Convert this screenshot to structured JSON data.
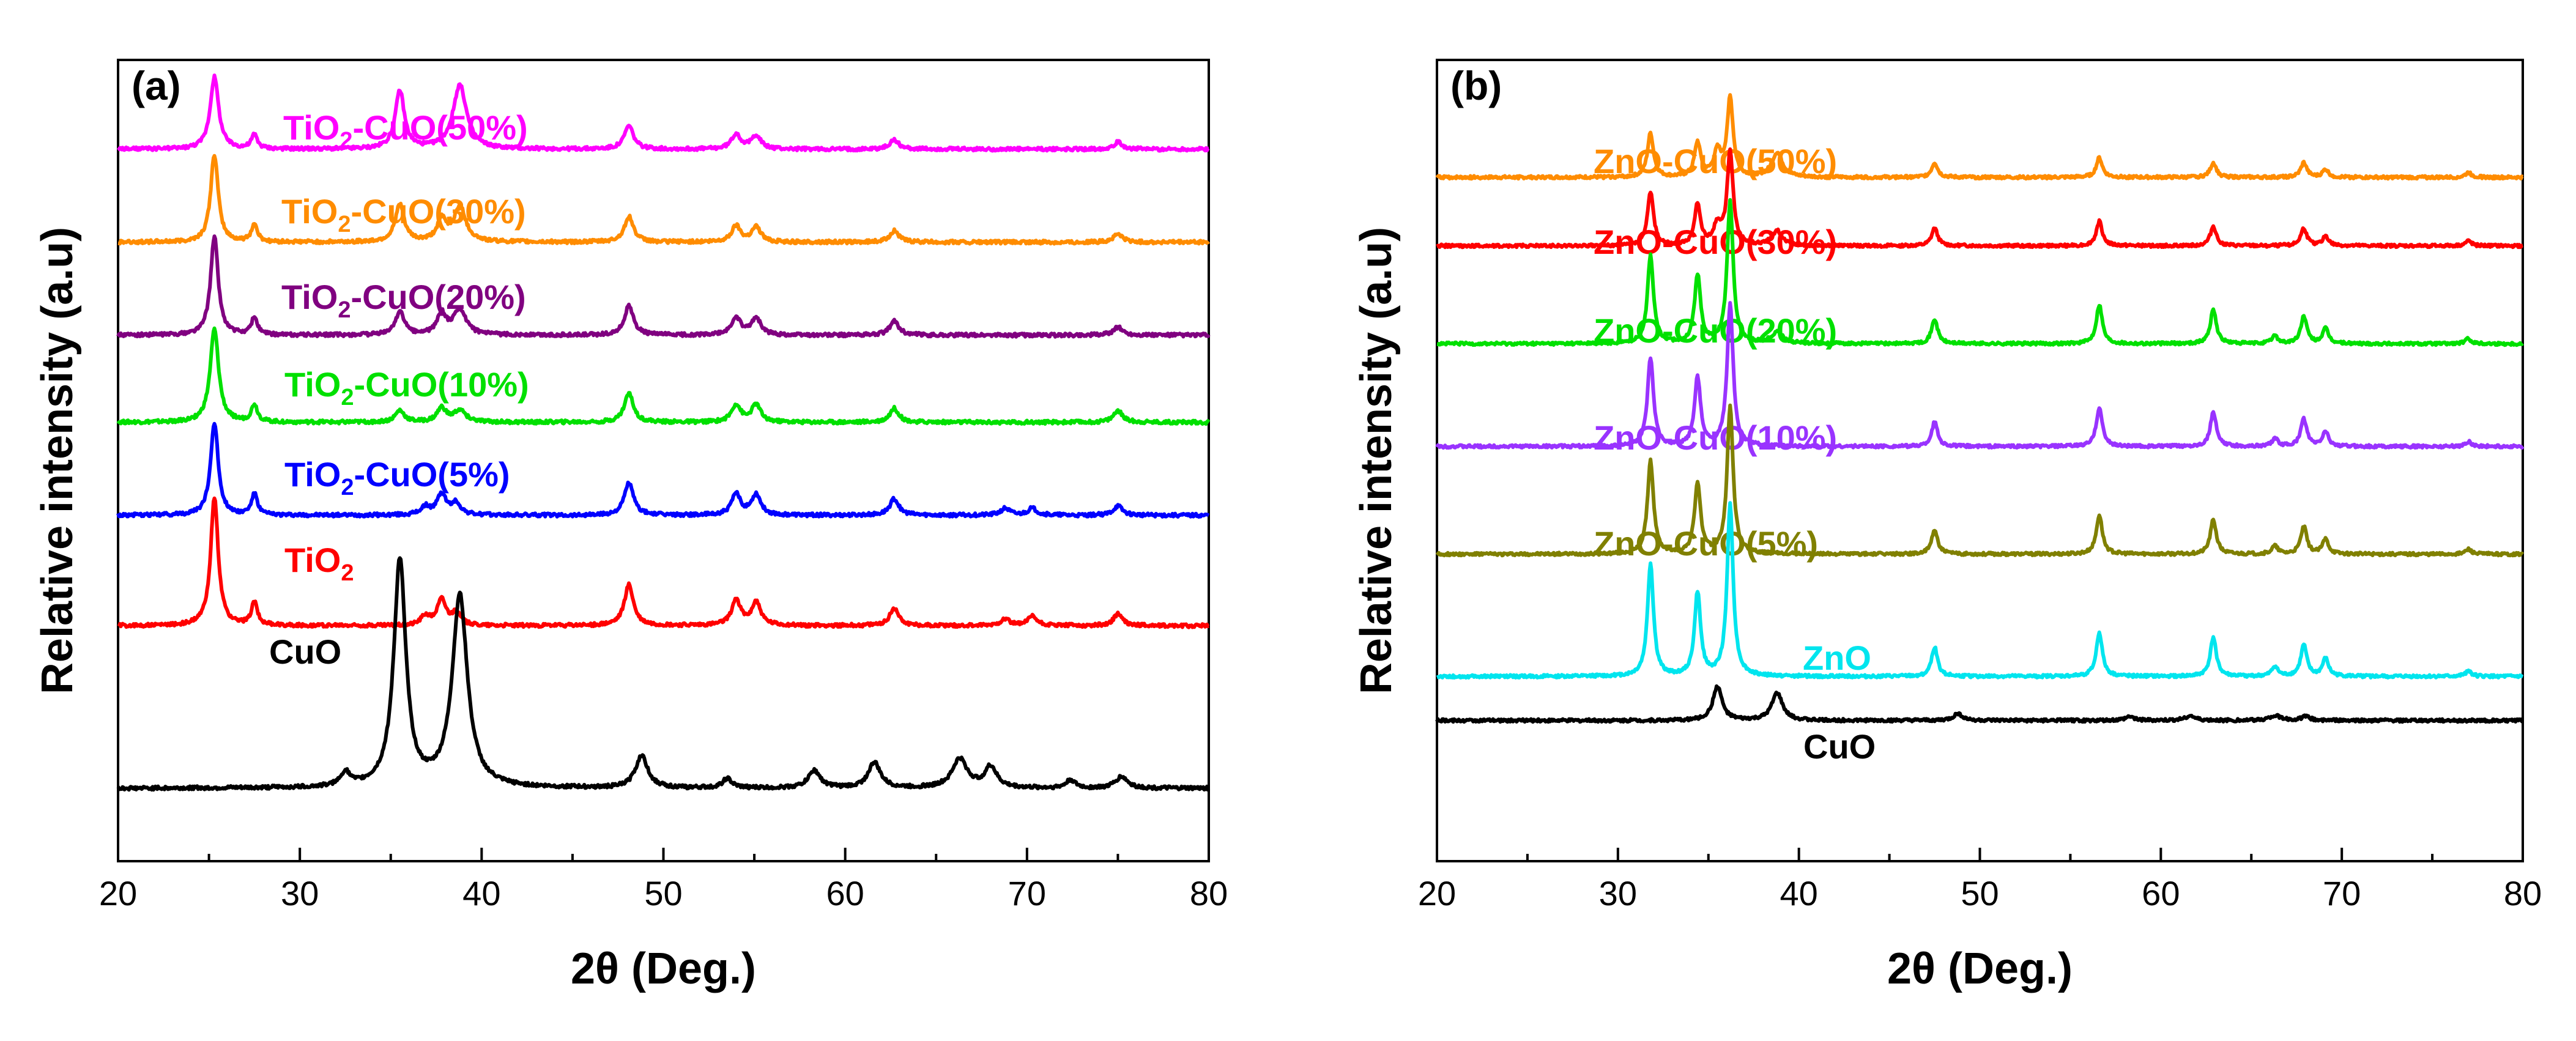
{
  "chart_data": [
    {
      "type": "line",
      "panel_label": "(a)",
      "xlabel": "2θ (Deg.)",
      "ylabel": "Relative intensity (a.u)",
      "xlim": [
        20,
        80
      ],
      "x_ticks": [
        "20",
        "30",
        "40",
        "50",
        "60",
        "70",
        "80"
      ],
      "y_ticks_labeled": false,
      "series": [
        {
          "name": "TiO2-CuO(50%)",
          "label": "TiO",
          "sub": "2",
          "rest": "-CuO(50%)",
          "color": "#ff00ff",
          "baseline": 6.1,
          "peaks": [
            [
              25.3,
              0.62,
              0.28
            ],
            [
              27.5,
              0.12,
              0.2
            ],
            [
              35.5,
              0.5,
              0.3
            ],
            [
              38.8,
              0.55,
              0.45
            ],
            [
              48.1,
              0.2,
              0.3
            ],
            [
              54.0,
              0.13,
              0.3
            ],
            [
              55.1,
              0.12,
              0.3
            ],
            [
              62.7,
              0.08,
              0.3
            ],
            [
              75.0,
              0.06,
              0.3
            ]
          ]
        },
        {
          "name": "TiO2-CuO(30%)",
          "label": "TiO",
          "sub": "2",
          "rest": "-CuO(30%)",
          "color": "#ff8c00",
          "baseline": 5.3,
          "peaks": [
            [
              25.3,
              0.75,
              0.25
            ],
            [
              27.5,
              0.15,
              0.2
            ],
            [
              35.5,
              0.32,
              0.3
            ],
            [
              37.8,
              0.18,
              0.3
            ],
            [
              38.8,
              0.3,
              0.4
            ],
            [
              48.1,
              0.22,
              0.3
            ],
            [
              54.0,
              0.14,
              0.3
            ],
            [
              55.1,
              0.13,
              0.3
            ],
            [
              62.7,
              0.1,
              0.3
            ],
            [
              75.0,
              0.07,
              0.3
            ]
          ]
        },
        {
          "name": "TiO2-CuO(20%)",
          "label": "TiO",
          "sub": "2",
          "rest": "-CuO(20%)",
          "color": "#800080",
          "baseline": 4.5,
          "peaks": [
            [
              25.3,
              0.85,
              0.25
            ],
            [
              27.5,
              0.15,
              0.2
            ],
            [
              35.5,
              0.2,
              0.3
            ],
            [
              37.8,
              0.18,
              0.3
            ],
            [
              38.8,
              0.22,
              0.4
            ],
            [
              48.1,
              0.25,
              0.3
            ],
            [
              54.0,
              0.15,
              0.3
            ],
            [
              55.1,
              0.15,
              0.3
            ],
            [
              62.7,
              0.12,
              0.3
            ],
            [
              75.0,
              0.07,
              0.3
            ]
          ]
        },
        {
          "name": "TiO2-CuO(10%)",
          "label": "TiO",
          "sub": "2",
          "rest": "-CuO(10%)",
          "color": "#00e000",
          "baseline": 3.75,
          "peaks": [
            [
              25.3,
              0.8,
              0.28
            ],
            [
              27.5,
              0.15,
              0.2
            ],
            [
              35.5,
              0.1,
              0.3
            ],
            [
              37.8,
              0.12,
              0.3
            ],
            [
              38.8,
              0.1,
              0.4
            ],
            [
              48.1,
              0.25,
              0.3
            ],
            [
              54.0,
              0.15,
              0.3
            ],
            [
              55.1,
              0.15,
              0.3
            ],
            [
              62.7,
              0.12,
              0.3
            ],
            [
              75.0,
              0.1,
              0.3
            ]
          ]
        },
        {
          "name": "TiO2-CuO(5%)",
          "label": "TiO",
          "sub": "2",
          "rest": "-CuO(5%)",
          "color": "#0000ff",
          "baseline": 2.95,
          "peaks": [
            [
              25.3,
              0.8,
              0.25
            ],
            [
              27.5,
              0.18,
              0.2
            ],
            [
              36.9,
              0.07,
              0.3
            ],
            [
              37.8,
              0.18,
              0.3
            ],
            [
              38.6,
              0.1,
              0.3
            ],
            [
              48.1,
              0.28,
              0.3
            ],
            [
              54.0,
              0.18,
              0.3
            ],
            [
              55.1,
              0.18,
              0.3
            ],
            [
              62.7,
              0.14,
              0.3
            ],
            [
              68.8,
              0.06,
              0.3
            ],
            [
              70.3,
              0.06,
              0.3
            ],
            [
              75.0,
              0.08,
              0.3
            ]
          ]
        },
        {
          "name": "TiO2",
          "label": "TiO",
          "sub": "2",
          "rest": "",
          "color": "#ff0000",
          "baseline": 2.0,
          "peaks": [
            [
              25.3,
              1.1,
              0.25
            ],
            [
              27.5,
              0.2,
              0.2
            ],
            [
              36.9,
              0.08,
              0.3
            ],
            [
              37.8,
              0.22,
              0.3
            ],
            [
              38.6,
              0.1,
              0.3
            ],
            [
              48.1,
              0.35,
              0.3
            ],
            [
              54.0,
              0.22,
              0.3
            ],
            [
              55.1,
              0.2,
              0.3
            ],
            [
              62.7,
              0.15,
              0.3
            ],
            [
              68.8,
              0.06,
              0.3
            ],
            [
              70.3,
              0.08,
              0.3
            ],
            [
              75.0,
              0.1,
              0.3
            ]
          ]
        },
        {
          "name": "CuO",
          "label": "CuO",
          "sub": "",
          "rest": "",
          "color": "#000000",
          "baseline": 0.6,
          "peaks": [
            [
              32.5,
              0.12,
              0.3
            ],
            [
              35.5,
              1.95,
              0.4
            ],
            [
              38.8,
              1.65,
              0.5
            ],
            [
              48.8,
              0.28,
              0.4
            ],
            [
              53.5,
              0.08,
              0.3
            ],
            [
              58.3,
              0.15,
              0.4
            ],
            [
              61.6,
              0.22,
              0.4
            ],
            [
              66.3,
              0.25,
              0.5
            ],
            [
              68.0,
              0.18,
              0.4
            ],
            [
              72.4,
              0.07,
              0.3
            ],
            [
              75.2,
              0.1,
              0.4
            ]
          ]
        }
      ]
    },
    {
      "type": "line",
      "panel_label": "(b)",
      "xlabel": "2θ (Deg.)",
      "ylabel": "Relative intensity (a.u)",
      "xlim": [
        20,
        80
      ],
      "x_ticks": [
        "20",
        "30",
        "40",
        "50",
        "60",
        "70",
        "80"
      ],
      "y_ticks_labeled": false,
      "series": [
        {
          "name": "ZnO-CuO(50%)",
          "label": "ZnO-CuO(50%)",
          "sub": "",
          "rest": "",
          "color": "#ff8c00",
          "baseline": 6.3,
          "peaks": [
            [
              31.8,
              0.45,
              0.2
            ],
            [
              34.4,
              0.35,
              0.2
            ],
            [
              35.5,
              0.25,
              0.25
            ],
            [
              36.2,
              0.8,
              0.2
            ],
            [
              38.8,
              0.25,
              0.35
            ],
            [
              47.5,
              0.15,
              0.2
            ],
            [
              56.6,
              0.2,
              0.2
            ],
            [
              62.9,
              0.15,
              0.2
            ],
            [
              67.9,
              0.15,
              0.2
            ],
            [
              69.1,
              0.08,
              0.2
            ],
            [
              77.0,
              0.05,
              0.2
            ]
          ]
        },
        {
          "name": "ZnO-CuO(30%)",
          "label": "ZnO-CuO(30%)",
          "sub": "",
          "rest": "",
          "color": "#ff0000",
          "baseline": 5.6,
          "peaks": [
            [
              31.8,
              0.55,
              0.2
            ],
            [
              34.4,
              0.42,
              0.2
            ],
            [
              35.5,
              0.2,
              0.25
            ],
            [
              36.2,
              0.95,
              0.2
            ],
            [
              38.8,
              0.15,
              0.35
            ],
            [
              47.5,
              0.18,
              0.2
            ],
            [
              56.6,
              0.25,
              0.2
            ],
            [
              62.9,
              0.2,
              0.2
            ],
            [
              67.9,
              0.18,
              0.2
            ],
            [
              69.1,
              0.1,
              0.2
            ],
            [
              77.0,
              0.05,
              0.2
            ]
          ]
        },
        {
          "name": "ZnO-CuO(20%)",
          "label": "ZnO-CuO(20%)",
          "sub": "",
          "rest": "",
          "color": "#00e000",
          "baseline": 4.6,
          "peaks": [
            [
              31.8,
              0.9,
              0.2
            ],
            [
              34.4,
              0.7,
              0.2
            ],
            [
              36.2,
              1.45,
              0.2
            ],
            [
              38.8,
              0.12,
              0.35
            ],
            [
              47.5,
              0.25,
              0.2
            ],
            [
              56.6,
              0.4,
              0.2
            ],
            [
              62.9,
              0.35,
              0.2
            ],
            [
              66.3,
              0.08,
              0.2
            ],
            [
              67.9,
              0.28,
              0.2
            ],
            [
              69.1,
              0.15,
              0.2
            ],
            [
              77.0,
              0.05,
              0.2
            ]
          ]
        },
        {
          "name": "ZnO-CuO(10%)",
          "label": "ZnO-CuO(10%)",
          "sub": "",
          "rest": "",
          "color": "#9933ff",
          "baseline": 3.55,
          "peaks": [
            [
              31.8,
              0.9,
              0.2
            ],
            [
              34.4,
              0.7,
              0.2
            ],
            [
              36.2,
              1.45,
              0.2
            ],
            [
              47.5,
              0.25,
              0.2
            ],
            [
              56.6,
              0.4,
              0.2
            ],
            [
              62.9,
              0.35,
              0.2
            ],
            [
              66.3,
              0.08,
              0.2
            ],
            [
              67.9,
              0.28,
              0.2
            ],
            [
              69.1,
              0.15,
              0.2
            ],
            [
              77.0,
              0.05,
              0.2
            ]
          ]
        },
        {
          "name": "ZnO-CuO(5%)",
          "label": "ZnO-CuO(5%)",
          "sub": "",
          "rest": "",
          "color": "#808000",
          "baseline": 2.45,
          "peaks": [
            [
              31.8,
              0.95,
              0.2
            ],
            [
              34.4,
              0.72,
              0.2
            ],
            [
              36.2,
              1.5,
              0.2
            ],
            [
              47.5,
              0.25,
              0.2
            ],
            [
              56.6,
              0.4,
              0.2
            ],
            [
              62.9,
              0.35,
              0.2
            ],
            [
              66.3,
              0.08,
              0.2
            ],
            [
              67.9,
              0.28,
              0.2
            ],
            [
              69.1,
              0.15,
              0.2
            ],
            [
              77.0,
              0.05,
              0.2
            ]
          ]
        },
        {
          "name": "ZnO",
          "label": "ZnO",
          "sub": "",
          "rest": "",
          "color": "#00e5ee",
          "baseline": 1.2,
          "peaks": [
            [
              31.8,
              1.15,
              0.2
            ],
            [
              34.4,
              0.85,
              0.2
            ],
            [
              36.2,
              1.75,
              0.2
            ],
            [
              47.5,
              0.3,
              0.2
            ],
            [
              56.6,
              0.45,
              0.2
            ],
            [
              62.9,
              0.4,
              0.2
            ],
            [
              66.3,
              0.1,
              0.2
            ],
            [
              67.9,
              0.32,
              0.2
            ],
            [
              69.1,
              0.18,
              0.2
            ],
            [
              77.0,
              0.06,
              0.2
            ]
          ]
        },
        {
          "name": "CuO",
          "label": "CuO",
          "sub": "",
          "rest": "",
          "color": "#000000",
          "baseline": 0.75,
          "peaks": [
            [
              35.5,
              0.35,
              0.3
            ],
            [
              38.8,
              0.28,
              0.35
            ],
            [
              48.8,
              0.07,
              0.3
            ],
            [
              58.3,
              0.04,
              0.3
            ],
            [
              61.6,
              0.05,
              0.3
            ],
            [
              66.3,
              0.05,
              0.4
            ],
            [
              68.0,
              0.04,
              0.3
            ]
          ]
        }
      ]
    }
  ]
}
